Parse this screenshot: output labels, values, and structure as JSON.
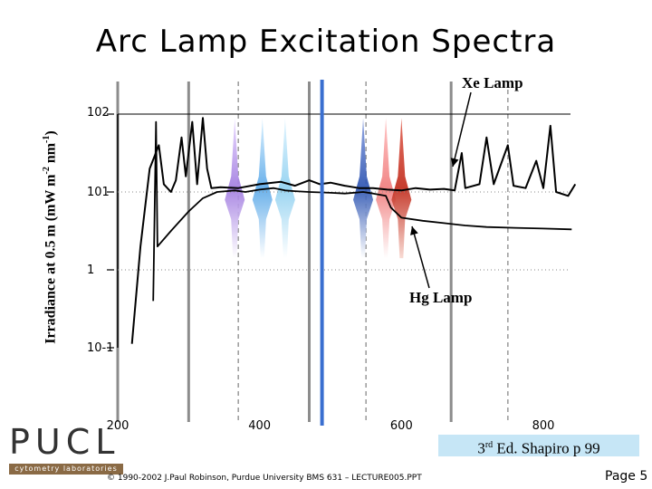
{
  "slide": {
    "title": "Arc Lamp Excitation Spectra",
    "copyright": "© 1990-2002 J.Paul Robinson, Purdue University BMS 631 – LECTURE005.PPT",
    "page": "Page 5",
    "reference": {
      "pre": "3",
      "sup": "rd",
      "post": " Ed. Shapiro p 99"
    },
    "logo": {
      "text": "PUCL",
      "subtitle": "cytometry laboratories"
    }
  },
  "chart_data": {
    "type": "line",
    "title": "Arc Lamp Excitation Spectra",
    "ylabel_parts": [
      "Irradiance at 0.5 m (mW m",
      "-2",
      " nm",
      "-1",
      ")"
    ],
    "xlabel": "",
    "x_ticks": [
      "200",
      "400",
      "600",
      "800"
    ],
    "y_ticks": [
      "10-1",
      "1",
      "101",
      "102"
    ],
    "y_scale": "log",
    "xlim": [
      200,
      850
    ],
    "ylim_log10": [
      -1,
      2
    ],
    "vertical_markers_solid_gray": [
      200,
      300,
      470,
      670
    ],
    "vertical_markers_dashed_gray": [
      370,
      550,
      750
    ],
    "vertical_marker_blue": 488,
    "series": [
      {
        "name": "Xe Lamp",
        "color": "#000000",
        "points": [
          [
            220,
            -0.95
          ],
          [
            232,
            0.3
          ],
          [
            245,
            1.3
          ],
          [
            258,
            1.6
          ],
          [
            265,
            1.1
          ],
          [
            275,
            1.0
          ],
          [
            282,
            1.15
          ],
          [
            290,
            1.7
          ],
          [
            296,
            1.2
          ],
          [
            305,
            1.9
          ],
          [
            312,
            1.1
          ],
          [
            320,
            1.95
          ],
          [
            326,
            1.3
          ],
          [
            332,
            1.05
          ],
          [
            345,
            1.06
          ],
          [
            370,
            1.05
          ],
          [
            400,
            1.1
          ],
          [
            430,
            1.13
          ],
          [
            450,
            1.08
          ],
          [
            470,
            1.15
          ],
          [
            485,
            1.1
          ],
          [
            500,
            1.12
          ],
          [
            520,
            1.08
          ],
          [
            540,
            1.05
          ],
          [
            560,
            1.05
          ],
          [
            580,
            1.03
          ],
          [
            600,
            1.02
          ],
          [
            620,
            1.05
          ],
          [
            640,
            1.03
          ],
          [
            660,
            1.04
          ],
          [
            675,
            1.02
          ],
          [
            685,
            1.5
          ],
          [
            690,
            1.05
          ],
          [
            710,
            1.1
          ],
          [
            720,
            1.7
          ],
          [
            730,
            1.1
          ],
          [
            750,
            1.6
          ],
          [
            758,
            1.08
          ],
          [
            775,
            1.05
          ],
          [
            790,
            1.4
          ],
          [
            800,
            1.05
          ],
          [
            810,
            1.85
          ],
          [
            818,
            1.0
          ],
          [
            835,
            0.95
          ],
          [
            845,
            1.1
          ]
        ]
      },
      {
        "name": "Hg Lamp",
        "color": "#000000",
        "points": [
          [
            250,
            -0.4
          ],
          [
            254,
            1.9
          ],
          [
            256,
            0.3
          ],
          [
            275,
            0.5
          ],
          [
            300,
            0.75
          ],
          [
            320,
            0.92
          ],
          [
            340,
            1.0
          ],
          [
            365,
            1.02
          ],
          [
            380,
            1.0
          ],
          [
            400,
            1.03
          ],
          [
            420,
            1.05
          ],
          [
            436,
            1.02
          ],
          [
            450,
            1.01
          ],
          [
            470,
            1.0
          ],
          [
            500,
            0.99
          ],
          [
            520,
            0.98
          ],
          [
            546,
            1.0
          ],
          [
            560,
            0.98
          ],
          [
            578,
            0.95
          ],
          [
            585,
            0.8
          ],
          [
            600,
            0.67
          ],
          [
            630,
            0.63
          ],
          [
            660,
            0.6
          ],
          [
            690,
            0.57
          ],
          [
            720,
            0.55
          ],
          [
            760,
            0.54
          ],
          [
            800,
            0.53
          ],
          [
            840,
            0.52
          ]
        ]
      }
    ],
    "excitation_peaks": [
      {
        "center": 365,
        "color": "#a07ae0"
      },
      {
        "center": 404,
        "color": "#5aa8e8"
      },
      {
        "center": 436,
        "color": "#8fd0f0"
      },
      {
        "center": 546,
        "color": "#2850b0"
      },
      {
        "center": 578,
        "color": "#f07a7a"
      },
      {
        "center": 600,
        "color": "#c02818"
      }
    ],
    "annotations": [
      {
        "text": "Xe Lamp",
        "points_to": [
          700,
          1.02
        ]
      },
      {
        "text": "Hg Lamp",
        "points_to": [
          628,
          0.63
        ]
      }
    ]
  }
}
